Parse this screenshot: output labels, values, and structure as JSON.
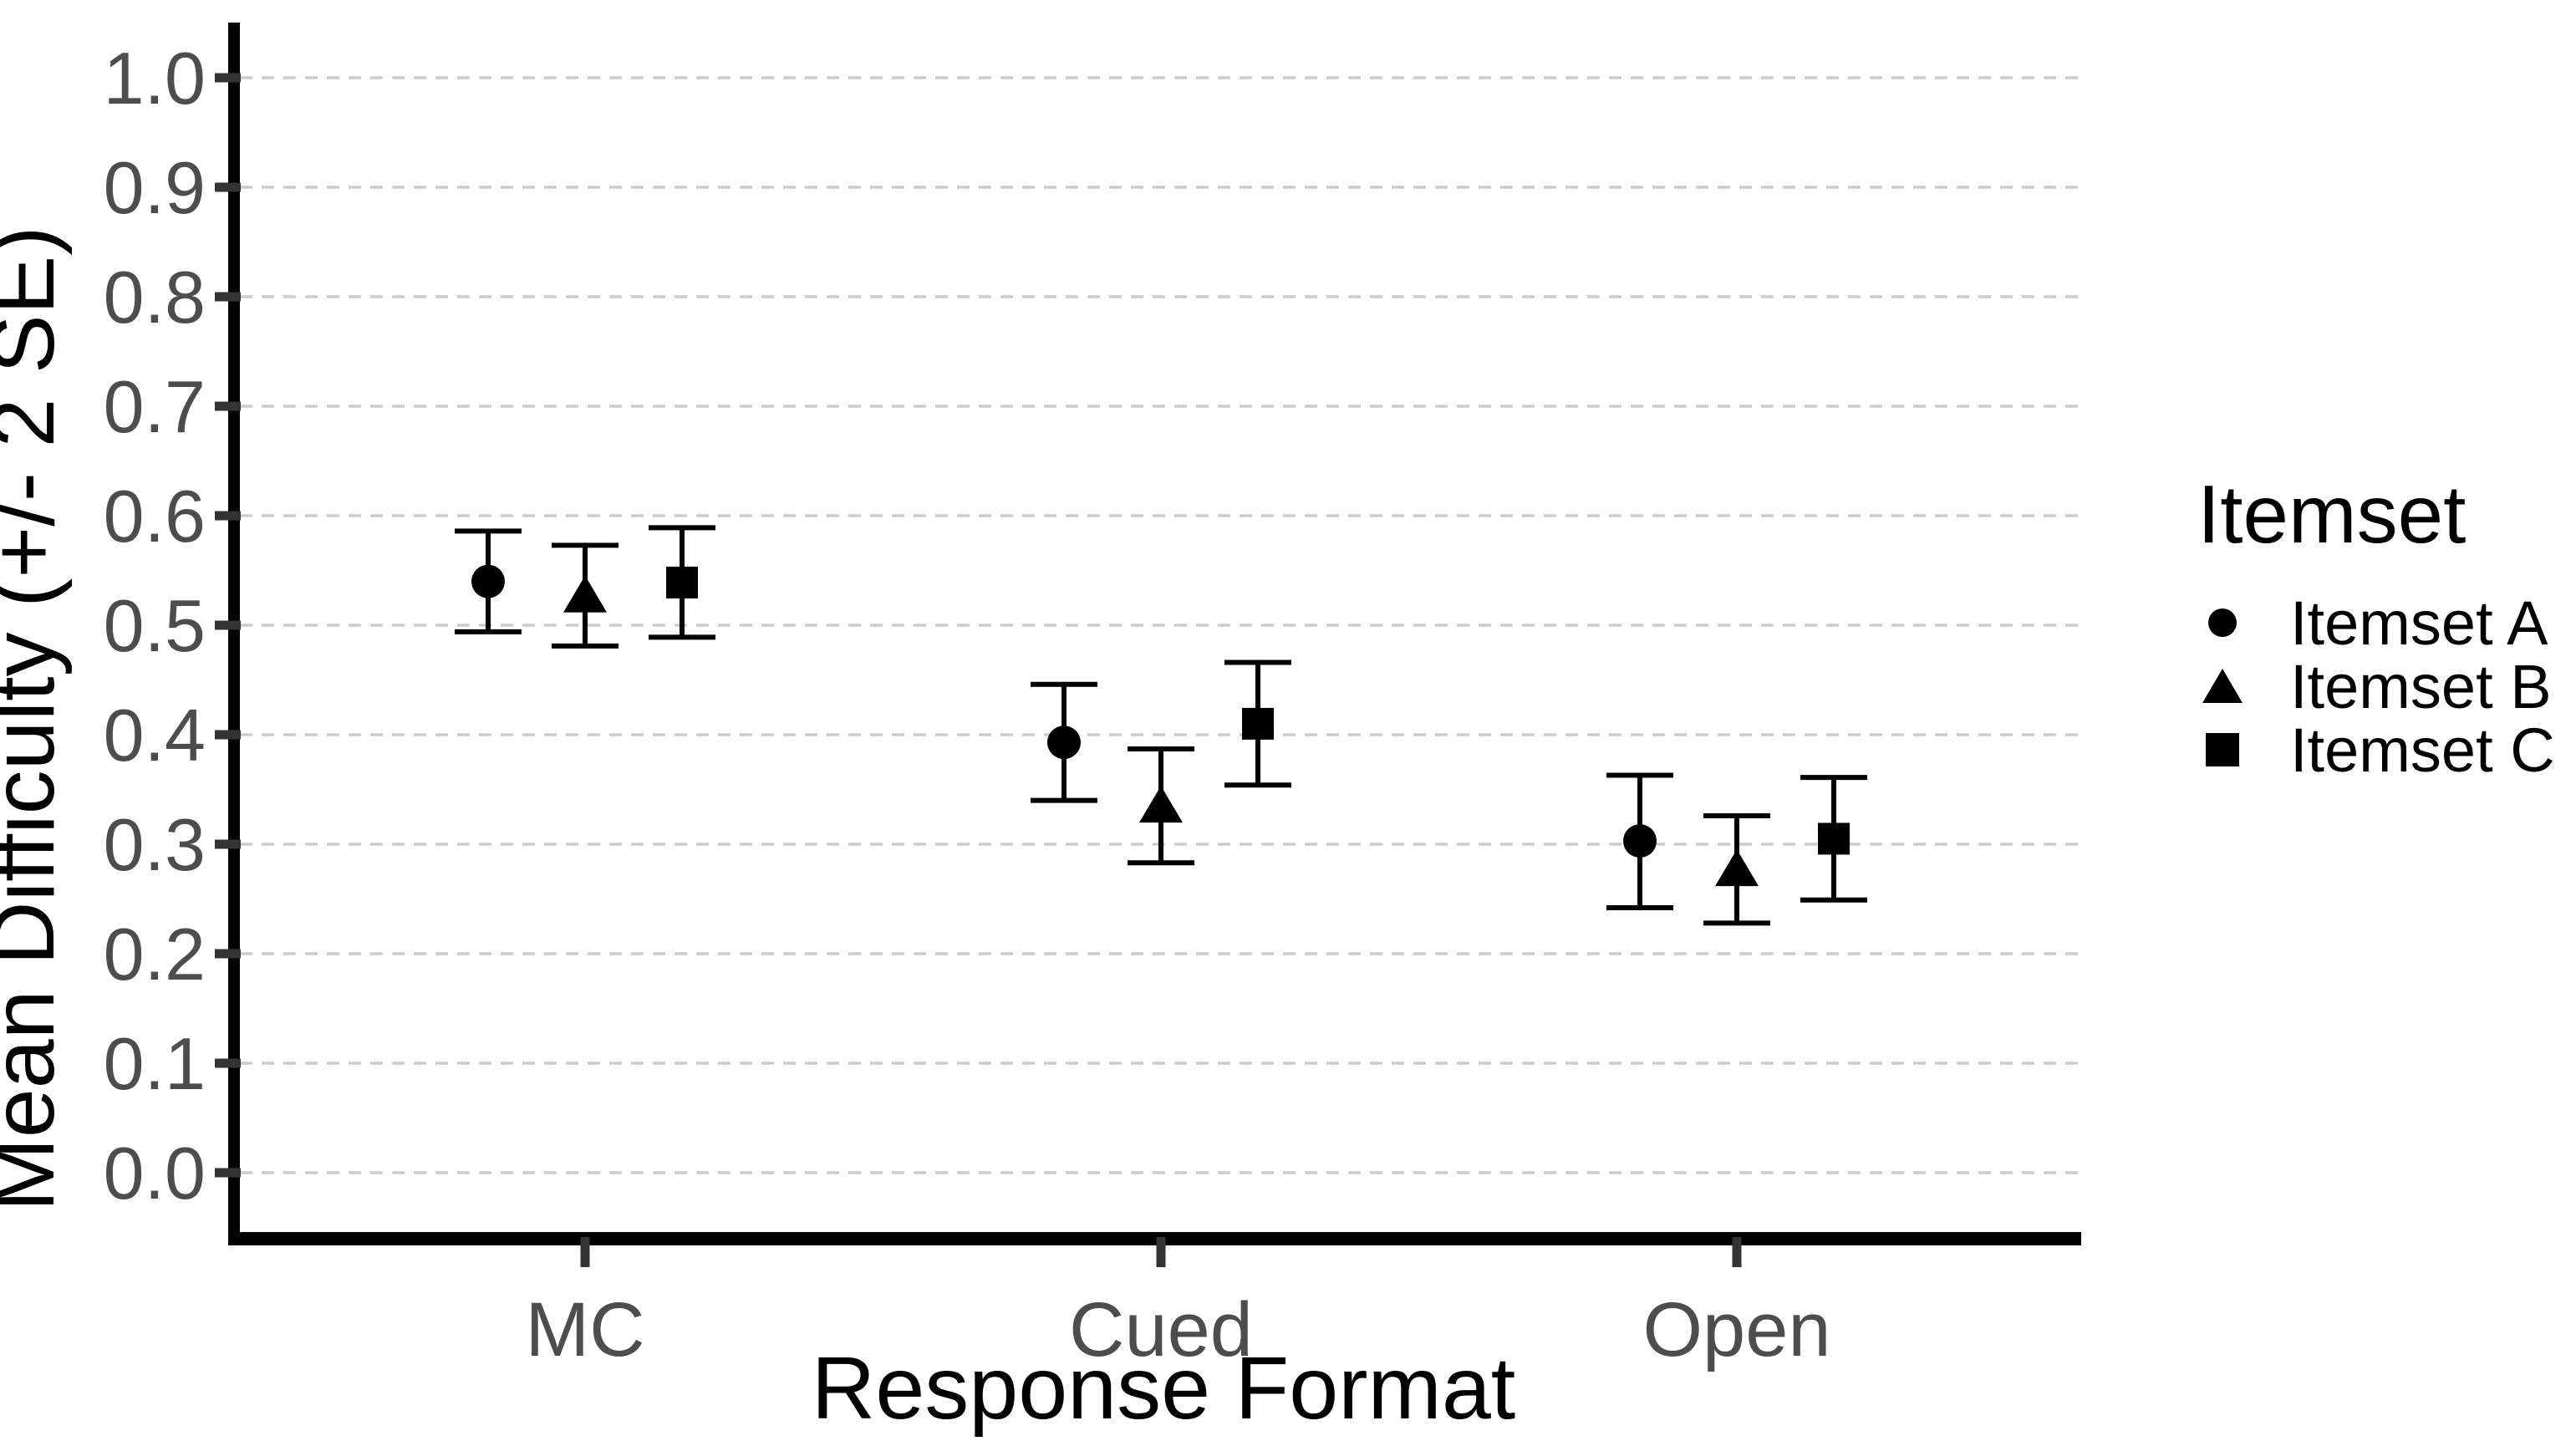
{
  "figure": {
    "background": "#ffffff"
  },
  "legend": {
    "title": "Itemset",
    "position": "right",
    "entries": [
      {
        "label": "Itemset A",
        "marker": "circle"
      },
      {
        "label": "Itemset B",
        "marker": "triangle"
      },
      {
        "label": "Itemset C",
        "marker": "square"
      }
    ]
  },
  "chart_data": {
    "type": "scatter",
    "title": "",
    "xlabel": "Response Format",
    "ylabel": "Mean Difficulty (+/- 2 SE)",
    "categories": [
      "MC",
      "Cued",
      "Open"
    ],
    "ylim": [
      0.0,
      1.0
    ],
    "y_ticks": [
      0.0,
      0.1,
      0.2,
      0.3,
      0.4,
      0.5,
      0.6,
      0.7,
      0.8,
      0.9,
      1.0
    ],
    "y_tick_labels": [
      "0.0",
      "0.1",
      "0.2",
      "0.3",
      "0.4",
      "0.5",
      "0.6",
      "0.7",
      "0.8",
      "0.9",
      "1.0"
    ],
    "grid": "horizontal-dashed",
    "legend_position": "right",
    "error_bar": "+/- 2 SE",
    "series": [
      {
        "name": "Itemset A",
        "marker": "circle",
        "means": [
          0.54,
          0.393,
          0.303
        ],
        "lower": [
          0.494,
          0.34,
          0.242
        ],
        "upper": [
          0.586,
          0.446,
          0.363
        ]
      },
      {
        "name": "Itemset B",
        "marker": "triangle",
        "means": [
          0.527,
          0.335,
          0.277
        ],
        "lower": [
          0.481,
          0.283,
          0.228
        ],
        "upper": [
          0.573,
          0.387,
          0.326
        ]
      },
      {
        "name": "Itemset C",
        "marker": "square",
        "means": [
          0.539,
          0.41,
          0.305
        ],
        "lower": [
          0.489,
          0.354,
          0.249
        ],
        "upper": [
          0.589,
          0.466,
          0.361
        ]
      }
    ]
  },
  "colors": {
    "marker": "#000000",
    "axis_line": "#000000",
    "tick_mark": "#333333",
    "tick_label": "#4d4d4d",
    "grid_line": "#cbcbcb",
    "text": "#000000"
  }
}
